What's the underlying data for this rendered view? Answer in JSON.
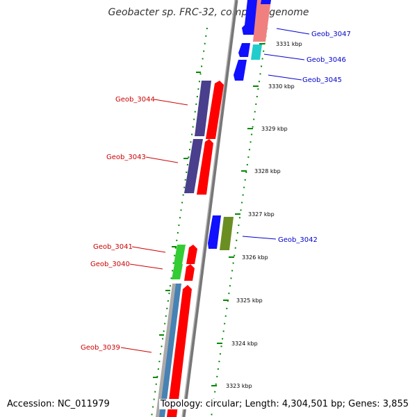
{
  "title": "Geobacter sp. FRC-32, complete genome",
  "accession": "Accession: NC_011979",
  "summary": "Topology: circular; Length: 4,304,501 bp; Genes: 3,855",
  "colors": {
    "red_label": "#cc0000",
    "blue_label": "#0000cc",
    "forward_gene": "#ff0000",
    "reverse_gene": "#1010ff",
    "dark_gene": "#4a3f8c",
    "green_gene": "#33cc33",
    "olive_gene": "#6b8e23",
    "pink_gene": "#f08080",
    "cyan_gene": "#22cccc",
    "steel_gene": "#4682b4",
    "tick_green": "#008800"
  },
  "ticks": [
    {
      "label": "3331 kbp"
    },
    {
      "label": "3330 kbp"
    },
    {
      "label": "3329 kbp"
    },
    {
      "label": "3328 kbp"
    },
    {
      "label": "3327 kbp"
    },
    {
      "label": "3326 kbp"
    },
    {
      "label": "3325 kbp"
    },
    {
      "label": "3324 kbp"
    },
    {
      "label": "3323 kbp"
    }
  ],
  "genes": [
    {
      "name": "Geob_3047",
      "strand": "reverse"
    },
    {
      "name": "Geob_3046",
      "strand": "reverse"
    },
    {
      "name": "Geob_3045",
      "strand": "reverse"
    },
    {
      "name": "Geob_3044",
      "strand": "forward"
    },
    {
      "name": "Geob_3043",
      "strand": "forward"
    },
    {
      "name": "Geob_3042",
      "strand": "reverse"
    },
    {
      "name": "Geob_3041",
      "strand": "forward"
    },
    {
      "name": "Geob_3040",
      "strand": "forward"
    },
    {
      "name": "Geob_3039",
      "strand": "forward"
    }
  ]
}
